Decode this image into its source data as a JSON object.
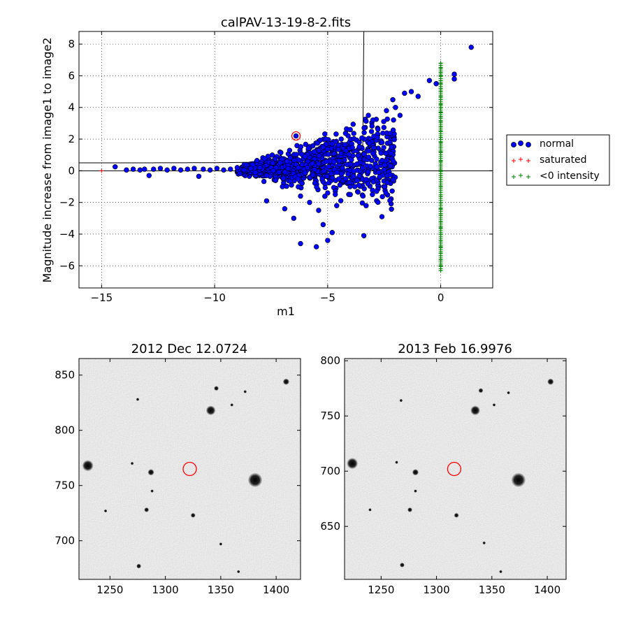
{
  "chart_data": [
    {
      "type": "scatter",
      "title": "calPAV-13-19-8-2.fits",
      "xlabel": "m1",
      "ylabel": "Magnitude increase from image1 to image2",
      "xlim": [
        -16,
        2.3
      ],
      "ylim": [
        -7.4,
        8.8
      ],
      "xticks": [
        -15,
        -10,
        -5,
        0
      ],
      "xtick_labels": [
        "−15",
        "−10",
        "−5",
        "0"
      ],
      "yticks": [
        -6,
        -4,
        -2,
        0,
        2,
        4,
        6,
        8
      ],
      "ytick_labels": [
        "−6",
        "−4",
        "−2",
        "0",
        "2",
        "4",
        "6",
        "8"
      ],
      "grid": true,
      "legend_placement": "right, outside plot",
      "series": [
        {
          "name": "normal",
          "marker": "circle",
          "color": "#0000ff",
          "edge": "#000000",
          "points": [
            [
              -14.4,
              0.25
            ],
            [
              -13.9,
              0.05
            ],
            [
              -13.6,
              0.1
            ],
            [
              -13.3,
              0.05
            ],
            [
              -13.1,
              0.1
            ],
            [
              -12.9,
              -0.3
            ],
            [
              -12.7,
              0.1
            ],
            [
              -12.4,
              0.15
            ],
            [
              -12.1,
              0.05
            ],
            [
              -11.8,
              0.15
            ],
            [
              -11.5,
              0.05
            ],
            [
              -11.2,
              0.1
            ],
            [
              -10.9,
              0.15
            ],
            [
              -10.7,
              -0.35
            ],
            [
              -10.5,
              0.1
            ],
            [
              -10.2,
              0.05
            ],
            [
              -9.9,
              0.15
            ],
            [
              -9.6,
              0.05
            ],
            [
              -9.3,
              0.1
            ],
            [
              -9.0,
              0.2
            ],
            [
              -8.7,
              0.05
            ],
            [
              -8.4,
              0.15
            ],
            [
              -8.2,
              -0.1
            ],
            [
              -7.9,
              0.1
            ],
            [
              -7.7,
              -0.3
            ],
            [
              -7.5,
              0.2
            ],
            [
              -7.3,
              -0.6
            ],
            [
              -7.1,
              0.5
            ],
            [
              -7.0,
              -1.0
            ],
            [
              -6.8,
              0.6
            ],
            [
              -6.6,
              -0.9
            ],
            [
              -6.4,
              0.4
            ],
            [
              -6.2,
              -1.6
            ],
            [
              -6.0,
              0.9
            ],
            [
              -5.8,
              -2.0
            ],
            [
              -5.6,
              1.2
            ],
            [
              -5.4,
              -2.5
            ],
            [
              -5.2,
              1.5
            ],
            [
              -5.0,
              -1.4
            ],
            [
              -4.8,
              1.7
            ],
            [
              -4.6,
              -2.2
            ],
            [
              -4.4,
              2.0
            ],
            [
              -4.2,
              -0.5
            ],
            [
              -4.0,
              2.6
            ],
            [
              -3.8,
              -1.0
            ],
            [
              -3.6,
              1.8
            ],
            [
              -3.4,
              -4.1
            ],
            [
              -3.2,
              3.5
            ],
            [
              -3.0,
              1.1
            ],
            [
              -2.8,
              2.1
            ],
            [
              -2.6,
              -2.9
            ],
            [
              -2.4,
              3.8
            ],
            [
              -2.2,
              1.1
            ],
            [
              -2.0,
              4.0
            ],
            [
              -1.8,
              3.5
            ],
            [
              -1.6,
              4.9
            ],
            [
              -1.3,
              5.0
            ],
            [
              -1.0,
              4.7
            ],
            [
              -0.5,
              5.7
            ],
            [
              -0.2,
              5.5
            ],
            [
              0.6,
              5.8
            ],
            [
              0.6,
              6.1
            ],
            [
              1.35,
              7.8
            ],
            [
              -6.4,
              2.2
            ],
            [
              -7.7,
              -1.9
            ],
            [
              -6.2,
              -4.6
            ],
            [
              -5.5,
              -4.8
            ],
            [
              -5.0,
              -4.4
            ],
            [
              -4.8,
              -3.9
            ],
            [
              -3.3,
              -2.2
            ],
            [
              -5.2,
              -3.4
            ],
            [
              -6.5,
              -3.0
            ],
            [
              -4.0,
              -1.5
            ],
            [
              -6.9,
              -2.4
            ],
            [
              -5.9,
              0.2
            ],
            [
              -6.3,
              0.2
            ],
            [
              -7.4,
              0.0
            ],
            [
              -8.0,
              0.2
            ],
            [
              -4.4,
              1.1
            ],
            [
              -3.0,
              3.2
            ]
          ]
        },
        {
          "name": "saturated",
          "marker": "plus",
          "color": "#ff0000",
          "points": [
            [
              -15.0,
              0.0
            ]
          ]
        },
        {
          "name": "<0 intensity",
          "marker": "plus",
          "color": "#008000",
          "points": [
            [
              0,
              6.8
            ],
            [
              0,
              6.5
            ],
            [
              0,
              6.2
            ],
            [
              0,
              6.0
            ],
            [
              0,
              5.7
            ],
            [
              0,
              5.5
            ],
            [
              0,
              5.2
            ],
            [
              0,
              5.0
            ],
            [
              0,
              4.7
            ],
            [
              0,
              4.5
            ],
            [
              0,
              4.2
            ],
            [
              0,
              4.0
            ],
            [
              0,
              3.7
            ],
            [
              0,
              3.4
            ],
            [
              0,
              3.1
            ],
            [
              0,
              2.8
            ],
            [
              0,
              2.5
            ],
            [
              0,
              2.1
            ],
            [
              0,
              1.8
            ],
            [
              0,
              1.5
            ],
            [
              0,
              1.2
            ],
            [
              0,
              0.9
            ],
            [
              0,
              0.6
            ],
            [
              0,
              0.3
            ],
            [
              0,
              0.0
            ],
            [
              0,
              -0.3
            ],
            [
              0,
              -1.0
            ],
            [
              0,
              -1.6
            ],
            [
              0,
              -2.0
            ],
            [
              0,
              -2.4
            ],
            [
              0,
              -2.8
            ],
            [
              0,
              -3.2
            ],
            [
              0,
              -3.6
            ],
            [
              0,
              -4.0
            ],
            [
              0,
              -4.4
            ],
            [
              0,
              -4.8
            ],
            [
              0,
              -5.2
            ],
            [
              0,
              -5.6
            ],
            [
              0,
              -6.0
            ],
            [
              0,
              -6.3
            ]
          ]
        }
      ],
      "highlighted_point": [
        -6.4,
        2.2
      ],
      "reference_lines": [
        "y = 0",
        "threshold curve"
      ]
    },
    {
      "type": "image",
      "title": "2012 Dec 12.0724",
      "xlim": [
        1222,
        1422
      ],
      "ylim": [
        665,
        865
      ],
      "xticks": [
        1250,
        1300,
        1350,
        1400
      ],
      "yticks": [
        700,
        750,
        800,
        850
      ],
      "colormap": "grayscale",
      "circled_target": [
        1322,
        765
      ],
      "stars": [
        [
          1230,
          768,
          7
        ],
        [
          1381,
          755,
          9
        ],
        [
          1341,
          818,
          6
        ],
        [
          1287,
          762,
          4
        ],
        [
          1409,
          844,
          4
        ],
        [
          1283,
          728,
          3
        ],
        [
          1276,
          677,
          3
        ],
        [
          1325,
          723,
          3
        ],
        [
          1346,
          838,
          3
        ],
        [
          1372,
          835,
          2
        ],
        [
          1360,
          823,
          2
        ],
        [
          1275,
          828,
          2
        ],
        [
          1246,
          727,
          2
        ],
        [
          1270,
          770,
          2
        ],
        [
          1366,
          672,
          2
        ],
        [
          1350,
          697,
          2
        ],
        [
          1288,
          745,
          2
        ]
      ]
    },
    {
      "type": "image",
      "title": "2013 Feb 16.9976",
      "xlim": [
        1217,
        1417
      ],
      "ylim": [
        602,
        802
      ],
      "xticks": [
        1250,
        1300,
        1350,
        1400
      ],
      "yticks": [
        650,
        700,
        750,
        800
      ],
      "colormap": "grayscale",
      "circled_target": [
        1316,
        702
      ],
      "stars": [
        [
          1224,
          707,
          7
        ],
        [
          1374,
          692,
          9
        ],
        [
          1335,
          755,
          6
        ],
        [
          1281,
          699,
          4
        ],
        [
          1403,
          781,
          4
        ],
        [
          1276,
          665,
          3
        ],
        [
          1269,
          615,
          3
        ],
        [
          1318,
          660,
          3
        ],
        [
          1340,
          773,
          3
        ],
        [
          1365,
          771,
          2
        ],
        [
          1352,
          760,
          2
        ],
        [
          1268,
          764,
          2
        ],
        [
          1240,
          665,
          2
        ],
        [
          1264,
          708,
          2
        ],
        [
          1358,
          609,
          2
        ],
        [
          1343,
          635,
          2
        ],
        [
          1281,
          682,
          2
        ]
      ]
    }
  ]
}
